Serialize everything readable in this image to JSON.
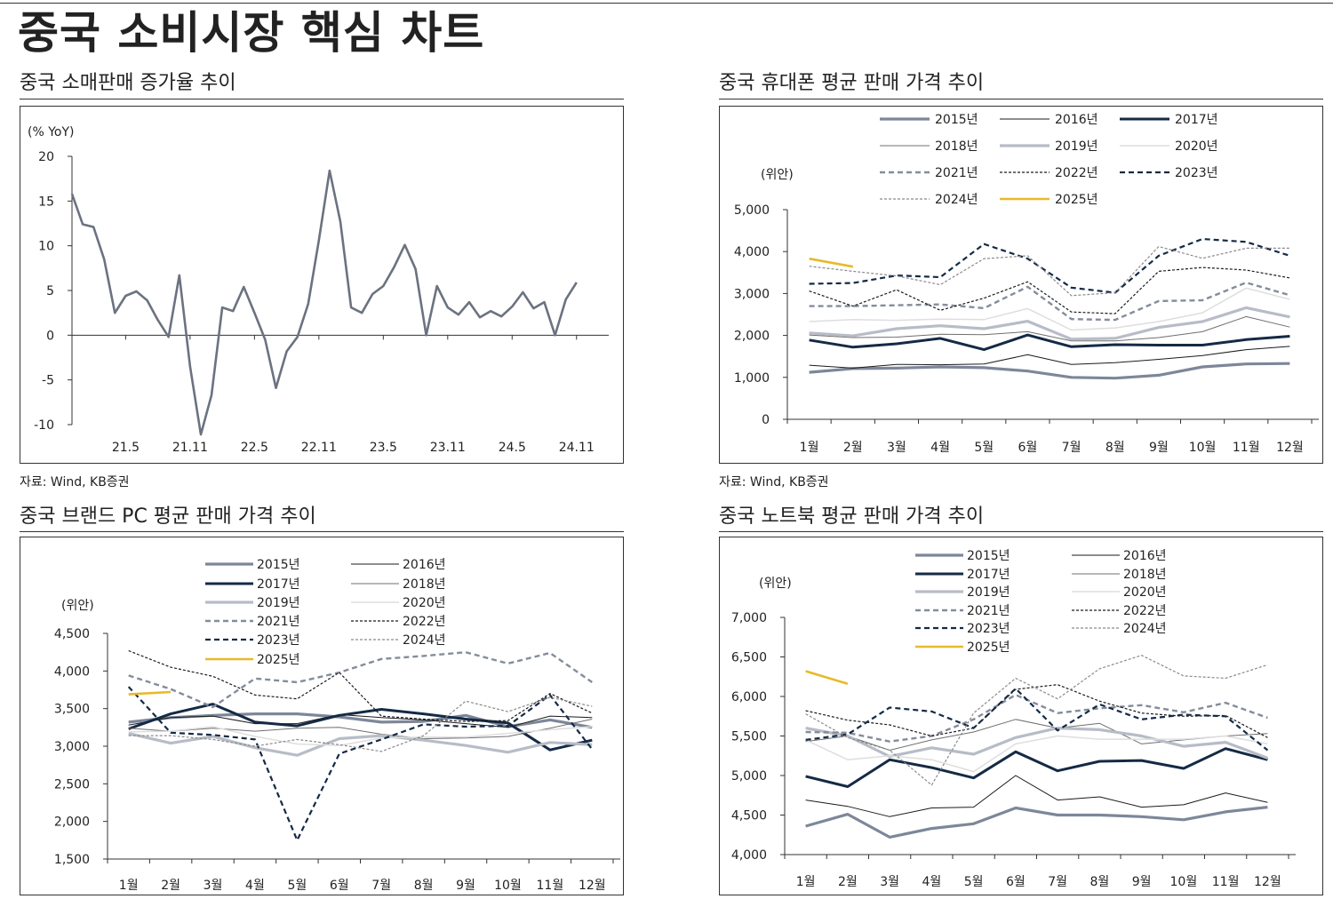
{
  "page_title": "중국 소비시장 핵심 차트",
  "source": "자료: Wind, KB증권",
  "legend_styles": {
    "2015년": {
      "color": "#7d8799",
      "width": 3.2,
      "dash": ""
    },
    "2016년": {
      "color": "#1b1b1b",
      "width": 1.0,
      "dash": ""
    },
    "2017년": {
      "color": "#142a45",
      "width": 3.0,
      "dash": ""
    },
    "2018년": {
      "color": "#6f6f6f",
      "width": 1.0,
      "dash": ""
    },
    "2019년": {
      "color": "#b7bcc7",
      "width": 3.2,
      "dash": ""
    },
    "2020년": {
      "color": "#dedede",
      "width": 1.5,
      "dash": ""
    },
    "2021년": {
      "color": "#848c9c",
      "width": 2.4,
      "dash": "6,4"
    },
    "2022년": {
      "color": "#1b1b1b",
      "width": 1.2,
      "dash": "3,2"
    },
    "2023년": {
      "color": "#142a45",
      "width": 2.2,
      "dash": "6,4"
    },
    "2024년": {
      "color": "#8a8a8a",
      "width": 1.2,
      "dash": "3,2"
    },
    "2025년": {
      "color": "#e8b92a",
      "width": 2.6,
      "dash": ""
    }
  },
  "chart_data": [
    {
      "id": "retail",
      "type": "line",
      "title": "중국 소매판매 증가율 추이",
      "unit_label": "(% YoY)",
      "ylim": [
        -10,
        20
      ],
      "yticks": [
        -10,
        -5,
        0,
        5,
        10,
        15,
        20
      ],
      "x_tick_labels": [
        "21.5",
        "21.11",
        "22.5",
        "22.11",
        "23.5",
        "23.11",
        "24.5",
        "24.11"
      ],
      "x_tick_positions": [
        5,
        11,
        17,
        23,
        29,
        35,
        41,
        47
      ],
      "x_count": 51,
      "series": [
        {
          "name": "소매판매 증가율",
          "color": "#6b7280",
          "values": [
            15.8,
            12.4,
            12.1,
            8.5,
            2.5,
            4.4,
            4.9,
            3.9,
            1.7,
            -0.2,
            6.7,
            -3.5,
            -11.1,
            -6.7,
            3.1,
            2.7,
            5.4,
            2.5,
            -0.5,
            -5.9,
            -1.8,
            -0.2,
            3.5,
            10.6,
            18.4,
            12.7,
            3.1,
            2.5,
            4.6,
            5.5,
            7.6,
            10.1,
            7.4,
            0.0,
            5.5,
            3.1,
            2.3,
            3.7,
            2.0,
            2.7,
            2.1,
            3.2,
            4.8,
            3.0,
            3.7,
            0.0,
            4.0,
            5.9
          ]
        }
      ]
    },
    {
      "id": "phone",
      "type": "line",
      "title": "중국 휴대폰 평균 판매 가격 추이",
      "unit_label": "(위안)",
      "ylim": [
        0,
        5000
      ],
      "yticks": [
        0,
        1000,
        2000,
        3000,
        4000,
        5000
      ],
      "ytick_labels": [
        "0",
        "1,000",
        "2,000",
        "3,000",
        "4,000",
        "5,000"
      ],
      "categories": [
        "1월",
        "2월",
        "3월",
        "4월",
        "5월",
        "6월",
        "7월",
        "8월",
        "9월",
        "10월",
        "11월",
        "12월"
      ],
      "series": [
        {
          "name": "2015년",
          "values": [
            1120,
            1210,
            1220,
            1250,
            1230,
            1150,
            1000,
            980,
            1050,
            1250,
            1320,
            1330
          ]
        },
        {
          "name": "2016년",
          "values": [
            1290,
            1220,
            1310,
            1300,
            1320,
            1540,
            1310,
            1350,
            1430,
            1520,
            1660,
            1740
          ]
        },
        {
          "name": "2017년",
          "values": [
            1890,
            1720,
            1800,
            1930,
            1660,
            2010,
            1730,
            1780,
            1770,
            1770,
            1900,
            1980
          ]
        },
        {
          "name": "2018년",
          "values": [
            2010,
            1950,
            1960,
            2030,
            2020,
            2090,
            1870,
            1870,
            1950,
            2090,
            2450,
            2200
          ]
        },
        {
          "name": "2019년",
          "values": [
            2060,
            1990,
            2160,
            2230,
            2160,
            2340,
            1910,
            1930,
            2190,
            2330,
            2660,
            2440
          ]
        },
        {
          "name": "2020년",
          "values": [
            2330,
            2380,
            2360,
            2390,
            2380,
            2640,
            2130,
            2180,
            2330,
            2540,
            3130,
            2860
          ]
        },
        {
          "name": "2021년",
          "values": [
            2700,
            2700,
            2720,
            2740,
            2650,
            3160,
            2390,
            2370,
            2820,
            2840,
            3260,
            2960
          ]
        },
        {
          "name": "2022년",
          "values": [
            3060,
            2700,
            3090,
            2600,
            2890,
            3280,
            2560,
            2520,
            3530,
            3620,
            3560,
            3370
          ]
        },
        {
          "name": "2023년",
          "values": [
            3230,
            3250,
            3430,
            3390,
            4180,
            3830,
            3140,
            3020,
            3900,
            4300,
            4230,
            3900
          ]
        },
        {
          "name": "2024년",
          "values": [
            3650,
            3530,
            3420,
            3210,
            3830,
            3900,
            2950,
            3020,
            4120,
            3840,
            4080,
            4080
          ]
        },
        {
          "name": "2025년",
          "values": [
            3830,
            3640,
            null,
            null,
            null,
            null,
            null,
            null,
            null,
            null,
            null,
            null
          ]
        }
      ]
    },
    {
      "id": "pc",
      "type": "line",
      "title": "중국 브랜드 PC 평균 판매 가격 추이",
      "unit_label": "(위안)",
      "ylim": [
        1500,
        4500
      ],
      "yticks": [
        1500,
        2000,
        2500,
        3000,
        3500,
        4000,
        4500
      ],
      "ytick_labels": [
        "1,500",
        "2,000",
        "2,500",
        "3,000",
        "3,500",
        "4,000",
        "4,500"
      ],
      "categories": [
        "1월",
        "2월",
        "3월",
        "4월",
        "5월",
        "6월",
        "7월",
        "8월",
        "9월",
        "10월",
        "11월",
        "12월"
      ],
      "series": [
        {
          "name": "2015년",
          "values": [
            3320,
            3380,
            3410,
            3430,
            3430,
            3390,
            3320,
            3330,
            3410,
            3260,
            3350,
            3250
          ]
        },
        {
          "name": "2016년",
          "values": [
            3280,
            3380,
            3400,
            3300,
            3300,
            3420,
            3380,
            3350,
            3300,
            3250,
            3400,
            3380
          ]
        },
        {
          "name": "2017년",
          "values": [
            3230,
            3430,
            3560,
            3320,
            3270,
            3410,
            3490,
            3430,
            3360,
            3310,
            2950,
            3080
          ]
        },
        {
          "name": "2018년",
          "values": [
            3240,
            3200,
            3240,
            3200,
            3240,
            3250,
            3160,
            3100,
            3110,
            3130,
            3240,
            3360
          ]
        },
        {
          "name": "2019년",
          "values": [
            3170,
            3040,
            3130,
            2980,
            2880,
            3100,
            3140,
            3080,
            3010,
            2920,
            3050,
            3020
          ]
        },
        {
          "name": "2020년",
          "values": [
            3190,
            3200,
            3260,
            3130,
            3030,
            3010,
            3110,
            3120,
            3120,
            3170,
            3220,
            3260
          ]
        },
        {
          "name": "2021년",
          "values": [
            3940,
            3760,
            3520,
            3900,
            3850,
            3980,
            4160,
            4200,
            4250,
            4100,
            4240,
            3850
          ]
        },
        {
          "name": "2022년",
          "values": [
            4270,
            4050,
            3930,
            3680,
            3630,
            3980,
            3400,
            3360,
            3330,
            3340,
            3700,
            3440
          ]
        },
        {
          "name": "2023년",
          "values": [
            3790,
            3180,
            3150,
            3090,
            1750,
            2900,
            3090,
            3290,
            3260,
            3270,
            3680,
            2960
          ]
        },
        {
          "name": "2024년",
          "values": [
            3140,
            3140,
            3090,
            3000,
            3090,
            3020,
            2930,
            3140,
            3600,
            3460,
            3650,
            3530
          ]
        },
        {
          "name": "2025년",
          "values": [
            3690,
            3720,
            null,
            null,
            null,
            null,
            null,
            null,
            null,
            null,
            null,
            null
          ]
        }
      ]
    },
    {
      "id": "notebook",
      "type": "line",
      "title": "중국 노트북 평균 판매 가격 추이",
      "unit_label": "(위안)",
      "ylim": [
        4000,
        7000
      ],
      "yticks": [
        4000,
        4500,
        5000,
        5500,
        6000,
        6500,
        7000
      ],
      "ytick_labels": [
        "4,000",
        "4,500",
        "5,000",
        "5,500",
        "6,000",
        "6,500",
        "7,000"
      ],
      "categories": [
        "1월",
        "2월",
        "3월",
        "4월",
        "5월",
        "6월",
        "7월",
        "8월",
        "9월",
        "10월",
        "11월",
        "12월"
      ],
      "series": [
        {
          "name": "2015년",
          "values": [
            4360,
            4510,
            4220,
            4330,
            4390,
            4590,
            4500,
            4500,
            4480,
            4440,
            4540,
            4600
          ]
        },
        {
          "name": "2016년",
          "values": [
            4690,
            4610,
            4480,
            4590,
            4600,
            5000,
            4690,
            4730,
            4600,
            4630,
            4780,
            4660
          ]
        },
        {
          "name": "2017년",
          "values": [
            4990,
            4860,
            5200,
            5100,
            4970,
            5300,
            5060,
            5180,
            5190,
            5090,
            5340,
            5200
          ]
        },
        {
          "name": "2018년",
          "values": [
            5430,
            5500,
            5320,
            5450,
            5550,
            5710,
            5600,
            5660,
            5400,
            5450,
            5500,
            5530
          ]
        },
        {
          "name": "2019년",
          "values": [
            5600,
            5500,
            5240,
            5350,
            5270,
            5480,
            5600,
            5580,
            5500,
            5370,
            5420,
            5220
          ]
        },
        {
          "name": "2020년",
          "values": [
            5450,
            5200,
            5250,
            5200,
            5050,
            5400,
            5500,
            5460,
            5460,
            5460,
            5500,
            5400
          ]
        },
        {
          "name": "2021년",
          "values": [
            5550,
            5540,
            5430,
            5500,
            5710,
            6020,
            5790,
            5850,
            5890,
            5800,
            5920,
            5730
          ]
        },
        {
          "name": "2022년",
          "values": [
            5820,
            5700,
            5640,
            5500,
            5600,
            6090,
            6150,
            5940,
            5790,
            5750,
            5760,
            5480
          ]
        },
        {
          "name": "2023년",
          "values": [
            5450,
            5520,
            5860,
            5810,
            5600,
            6100,
            5570,
            5900,
            5710,
            5770,
            5750,
            5320
          ]
        },
        {
          "name": "2024년",
          "values": [
            5780,
            5480,
            5320,
            4880,
            5790,
            6230,
            5970,
            6350,
            6520,
            6260,
            6230,
            6400
          ]
        },
        {
          "name": "2025년",
          "values": [
            6320,
            6160,
            null,
            null,
            null,
            null,
            null,
            null,
            null,
            null,
            null,
            null
          ]
        }
      ]
    }
  ]
}
